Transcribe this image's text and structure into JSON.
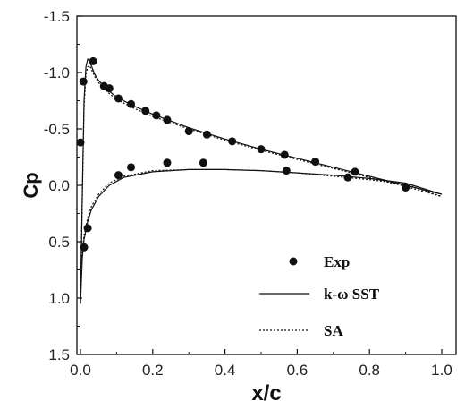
{
  "chart_data": {
    "type": "line",
    "xlabel": "x/c",
    "ylabel": "Cp",
    "xlim": [
      0.0,
      1.0
    ],
    "ylim": [
      -1.5,
      1.5
    ],
    "y_inverted": true,
    "x_ticks": [
      {
        "value": 0.0,
        "label": "0.0"
      },
      {
        "value": 0.2,
        "label": "0.2"
      },
      {
        "value": 0.4,
        "label": "0.4"
      },
      {
        "value": 0.6,
        "label": "0.6"
      },
      {
        "value": 0.8,
        "label": "0.8"
      },
      {
        "value": 1.0,
        "label": "1.0"
      }
    ],
    "y_ticks": [
      {
        "value": -1.5,
        "label": "-1.5"
      },
      {
        "value": -1.0,
        "label": "-1.0"
      },
      {
        "value": -0.5,
        "label": "-0.5"
      },
      {
        "value": 0.0,
        "label": "0.0"
      },
      {
        "value": 0.5,
        "label": "0.5"
      },
      {
        "value": 1.0,
        "label": "1.0"
      },
      {
        "value": 1.5,
        "label": "1.5"
      }
    ],
    "grid": false,
    "legend_position": "bottom-right",
    "series": [
      {
        "name": "Exp",
        "style": "markers",
        "color": "#111111",
        "x": [
          0.0,
          0.008,
          0.01,
          0.02,
          0.035,
          0.065,
          0.08,
          0.105,
          0.14,
          0.18,
          0.21,
          0.24,
          0.3,
          0.35,
          0.42,
          0.5,
          0.565,
          0.65,
          0.76,
          0.9,
          0.105,
          0.14,
          0.24,
          0.34,
          0.57,
          0.74
        ],
        "y": [
          -0.38,
          -0.92,
          0.55,
          0.38,
          -1.1,
          -0.88,
          -0.86,
          -0.77,
          -0.72,
          -0.66,
          -0.62,
          -0.58,
          -0.48,
          -0.45,
          -0.39,
          -0.32,
          -0.27,
          -0.21,
          -0.12,
          0.02,
          -0.09,
          -0.16,
          -0.2,
          -0.2,
          -0.13,
          -0.07
        ]
      },
      {
        "name": "k-ω SST",
        "style": "solid",
        "color": "#111111",
        "upper": {
          "x": [
            0.0,
            0.005,
            0.01,
            0.015,
            0.02,
            0.025,
            0.03,
            0.04,
            0.05,
            0.07,
            0.1,
            0.15,
            0.2,
            0.3,
            0.4,
            0.5,
            0.6,
            0.7,
            0.8,
            0.9,
            1.0
          ],
          "y": [
            1.05,
            0.1,
            -0.75,
            -1.05,
            -1.12,
            -1.1,
            -1.06,
            -0.98,
            -0.93,
            -0.86,
            -0.78,
            -0.7,
            -0.63,
            -0.51,
            -0.41,
            -0.32,
            -0.24,
            -0.16,
            -0.08,
            0.0,
            0.08
          ]
        },
        "lower": {
          "x": [
            0.0,
            0.005,
            0.01,
            0.02,
            0.03,
            0.05,
            0.08,
            0.12,
            0.2,
            0.3,
            0.4,
            0.5,
            0.6,
            0.7,
            0.8,
            0.9,
            1.0
          ],
          "y": [
            1.05,
            0.65,
            0.48,
            0.32,
            0.22,
            0.1,
            0.0,
            -0.07,
            -0.12,
            -0.14,
            -0.14,
            -0.13,
            -0.11,
            -0.09,
            -0.06,
            -0.02,
            0.08
          ]
        }
      },
      {
        "name": "SA",
        "style": "dotted",
        "color": "#111111",
        "upper": {
          "x": [
            0.0,
            0.005,
            0.01,
            0.015,
            0.02,
            0.025,
            0.03,
            0.04,
            0.05,
            0.07,
            0.1,
            0.15,
            0.2,
            0.3,
            0.4,
            0.5,
            0.6,
            0.7,
            0.8,
            0.9,
            1.0
          ],
          "y": [
            0.95,
            0.15,
            -0.68,
            -0.98,
            -1.05,
            -1.06,
            -1.03,
            -0.96,
            -0.91,
            -0.84,
            -0.76,
            -0.68,
            -0.61,
            -0.5,
            -0.4,
            -0.31,
            -0.23,
            -0.15,
            -0.07,
            0.01,
            0.1
          ]
        },
        "lower": {
          "x": [
            0.0,
            0.005,
            0.01,
            0.02,
            0.03,
            0.05,
            0.08,
            0.12,
            0.2,
            0.3,
            0.4,
            0.5,
            0.6,
            0.7,
            0.8,
            0.9,
            1.0
          ],
          "y": [
            0.95,
            0.6,
            0.44,
            0.29,
            0.19,
            0.08,
            -0.02,
            -0.08,
            -0.13,
            -0.14,
            -0.14,
            -0.13,
            -0.11,
            -0.08,
            -0.05,
            -0.01,
            0.1
          ]
        }
      }
    ]
  }
}
